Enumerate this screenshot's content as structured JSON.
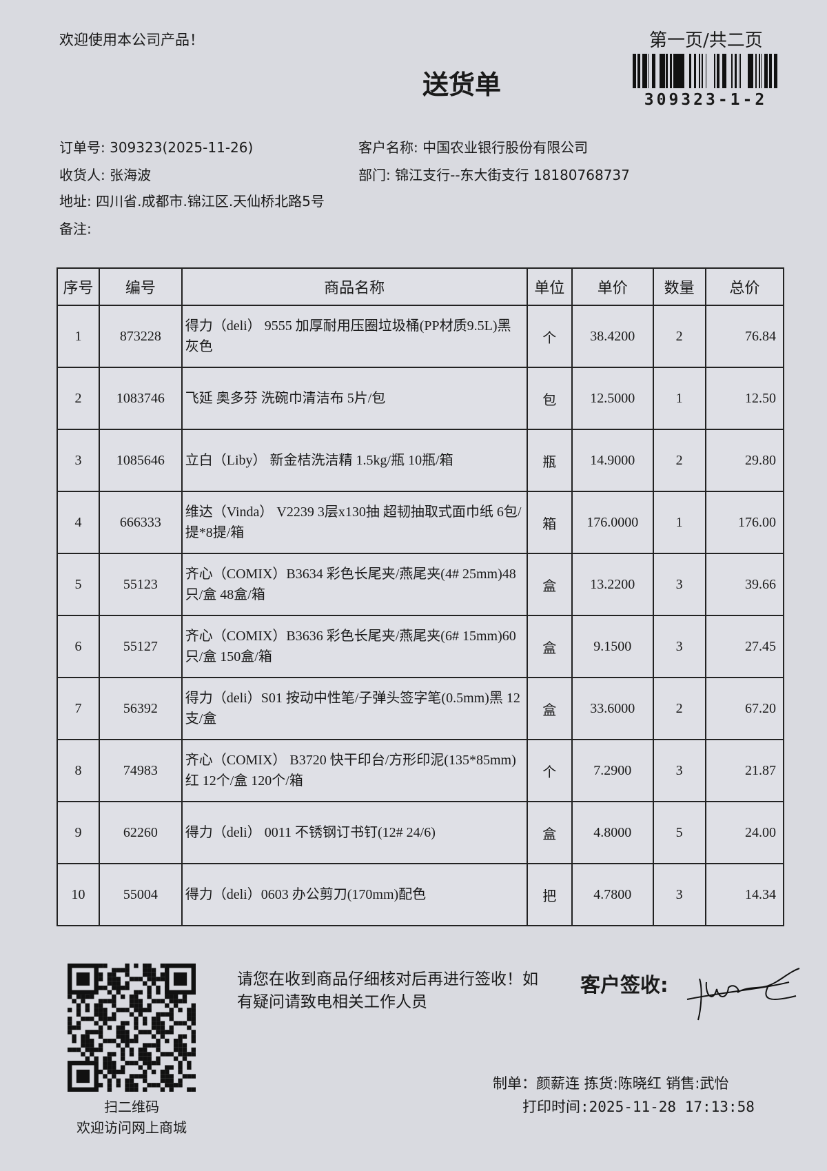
{
  "header": {
    "welcome": "欢迎使用本公司产品！",
    "page_info": "第一页/共二页",
    "title": "送货单",
    "barcode_text": "309323-1-2"
  },
  "order_info": {
    "order_no_label": "订单号:",
    "order_no": "309323(2025-11-26)",
    "customer_label": "客户名称:",
    "customer": "中国农业银行股份有限公司",
    "receiver_label": "收货人:",
    "receiver": "张海波",
    "department_label": "部门:",
    "department": "锦江支行--东大街支行 18180768737",
    "address_label": "地址:",
    "address": "四川省.成都市.锦江区.天仙桥北路5号",
    "remark_label": "备注:",
    "remark": ""
  },
  "table": {
    "columns": [
      "序号",
      "编号",
      "商品名称",
      "单位",
      "单价",
      "数量",
      "总价"
    ],
    "rows": [
      {
        "no": "1",
        "code": "873228",
        "name": "得力（deli） 9555 加厚耐用压圈垃圾桶(PP材质9.5L)黑灰色",
        "unit": "个",
        "price": "38.4200",
        "qty": "2",
        "total": "76.84"
      },
      {
        "no": "2",
        "code": "1083746",
        "name": "飞延 奥多芬 洗碗巾清洁布 5片/包",
        "unit": "包",
        "price": "12.5000",
        "qty": "1",
        "total": "12.50"
      },
      {
        "no": "3",
        "code": "1085646",
        "name": "立白（Liby） 新金桔洗洁精 1.5kg/瓶 10瓶/箱",
        "unit": "瓶",
        "price": "14.9000",
        "qty": "2",
        "total": "29.80"
      },
      {
        "no": "4",
        "code": "666333",
        "name": "维达（Vinda） V2239 3层x130抽 超韧抽取式面巾纸 6包/提*8提/箱",
        "unit": "箱",
        "price": "176.0000",
        "qty": "1",
        "total": "176.00"
      },
      {
        "no": "5",
        "code": "55123",
        "name": "齐心（COMIX）B3634 彩色长尾夹/燕尾夹(4# 25mm)48只/盒 48盒/箱",
        "unit": "盒",
        "price": "13.2200",
        "qty": "3",
        "total": "39.66"
      },
      {
        "no": "6",
        "code": "55127",
        "name": "齐心（COMIX）B3636 彩色长尾夹/燕尾夹(6# 15mm)60只/盒 150盒/箱",
        "unit": "盒",
        "price": "9.1500",
        "qty": "3",
        "total": "27.45"
      },
      {
        "no": "7",
        "code": "56392",
        "name": "得力（deli）S01 按动中性笔/子弹头签字笔(0.5mm)黑 12支/盒",
        "unit": "盒",
        "price": "33.6000",
        "qty": "2",
        "total": "67.20"
      },
      {
        "no": "8",
        "code": "74983",
        "name": "齐心（COMIX） B3720 快干印台/方形印泥(135*85mm)红 12个/盒 120个/箱",
        "unit": "个",
        "price": "7.2900",
        "qty": "3",
        "total": "21.87"
      },
      {
        "no": "9",
        "code": "62260",
        "name": "得力（deli） 0011 不锈钢订书钉(12# 24/6)",
        "unit": "盒",
        "price": "4.8000",
        "qty": "5",
        "total": "24.00"
      },
      {
        "no": "10",
        "code": "55004",
        "name": "得力（deli）0603 办公剪刀(170mm)配色",
        "unit": "把",
        "price": "4.7800",
        "qty": "3",
        "total": "14.34"
      }
    ]
  },
  "footer": {
    "qr_caption_1": "扫二维码",
    "qr_caption_2": "欢迎访问网上商城",
    "notice": "请您在收到商品仔细核对后再进行签收！如有疑问请致电相关工作人员",
    "sign_label": "客户签收:",
    "staff": "制单：颜薪连  拣货:陈晓红  销售:武怡",
    "print_time": "打印时间:2025-11-28 17:13:58"
  }
}
